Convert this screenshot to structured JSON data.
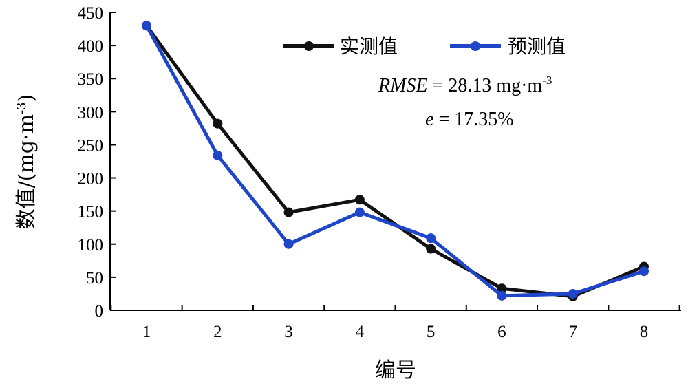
{
  "chart_data": {
    "type": "line",
    "xlabel": "编号",
    "ylabel": "数值/(mg·m",
    "ylabel_sup": "-3",
    "ylabel_close": ")",
    "ylim": [
      0,
      450
    ],
    "yticks": [
      0,
      50,
      100,
      150,
      200,
      250,
      300,
      350,
      400,
      450
    ],
    "x": [
      1,
      2,
      3,
      4,
      5,
      6,
      7,
      8
    ],
    "series": [
      {
        "name": "实测值",
        "color": "#111111",
        "values": [
          430,
          282,
          148,
          167,
          93,
          33,
          21,
          66
        ]
      },
      {
        "name": "预测值",
        "color": "#1f46c8",
        "values": [
          430,
          234,
          100,
          148,
          109,
          22,
          25,
          59
        ]
      }
    ],
    "annotations": {
      "rmse_label": "RMSE",
      "rmse_eq": " = 28.13 mg·m",
      "rmse_sup": "-3",
      "e_label": "e",
      "e_eq": " = 17.35%"
    },
    "legend_position": "top-right",
    "grid": false
  }
}
